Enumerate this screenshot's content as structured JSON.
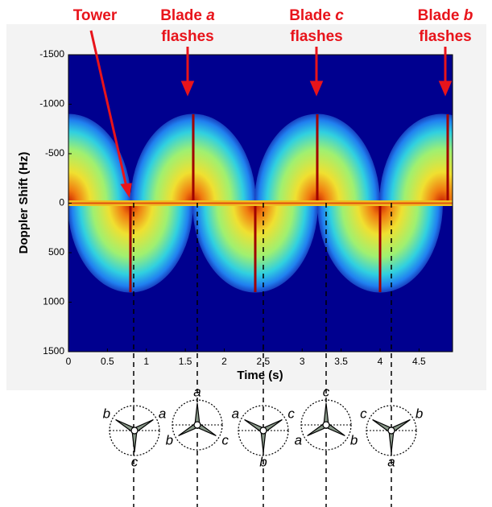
{
  "chart_data": {
    "type": "spectrogram",
    "xlabel": "Time (s)",
    "ylabel": "Doppler Shift (Hz)",
    "xlim": [
      0,
      4.93
    ],
    "ylim": [
      -1500,
      1500
    ],
    "y_inverted": true,
    "xticks": [
      0,
      0.5,
      1,
      1.5,
      2,
      2.5,
      3,
      3.5,
      4,
      4.5
    ],
    "yticks": [
      -1500,
      -1000,
      -500,
      0,
      500,
      1000,
      1500
    ],
    "annotations": [
      {
        "text": "Tower"
      },
      {
        "text": "Blade",
        "blade": "a",
        "text2": "flashes"
      },
      {
        "text": "Blade",
        "blade": "c",
        "text2": "flashes"
      },
      {
        "text": "Blade",
        "blade": "b",
        "text2": "flashes"
      }
    ],
    "rotors": [
      {
        "labels": [
          "b",
          "a",
          "c"
        ]
      },
      {
        "labels": [
          "a",
          "b",
          "c"
        ]
      },
      {
        "labels": [
          "a",
          "c",
          "b"
        ]
      },
      {
        "labels": [
          "c",
          "a",
          "b"
        ]
      },
      {
        "labels": [
          "c",
          "b",
          "a"
        ]
      }
    ]
  }
}
